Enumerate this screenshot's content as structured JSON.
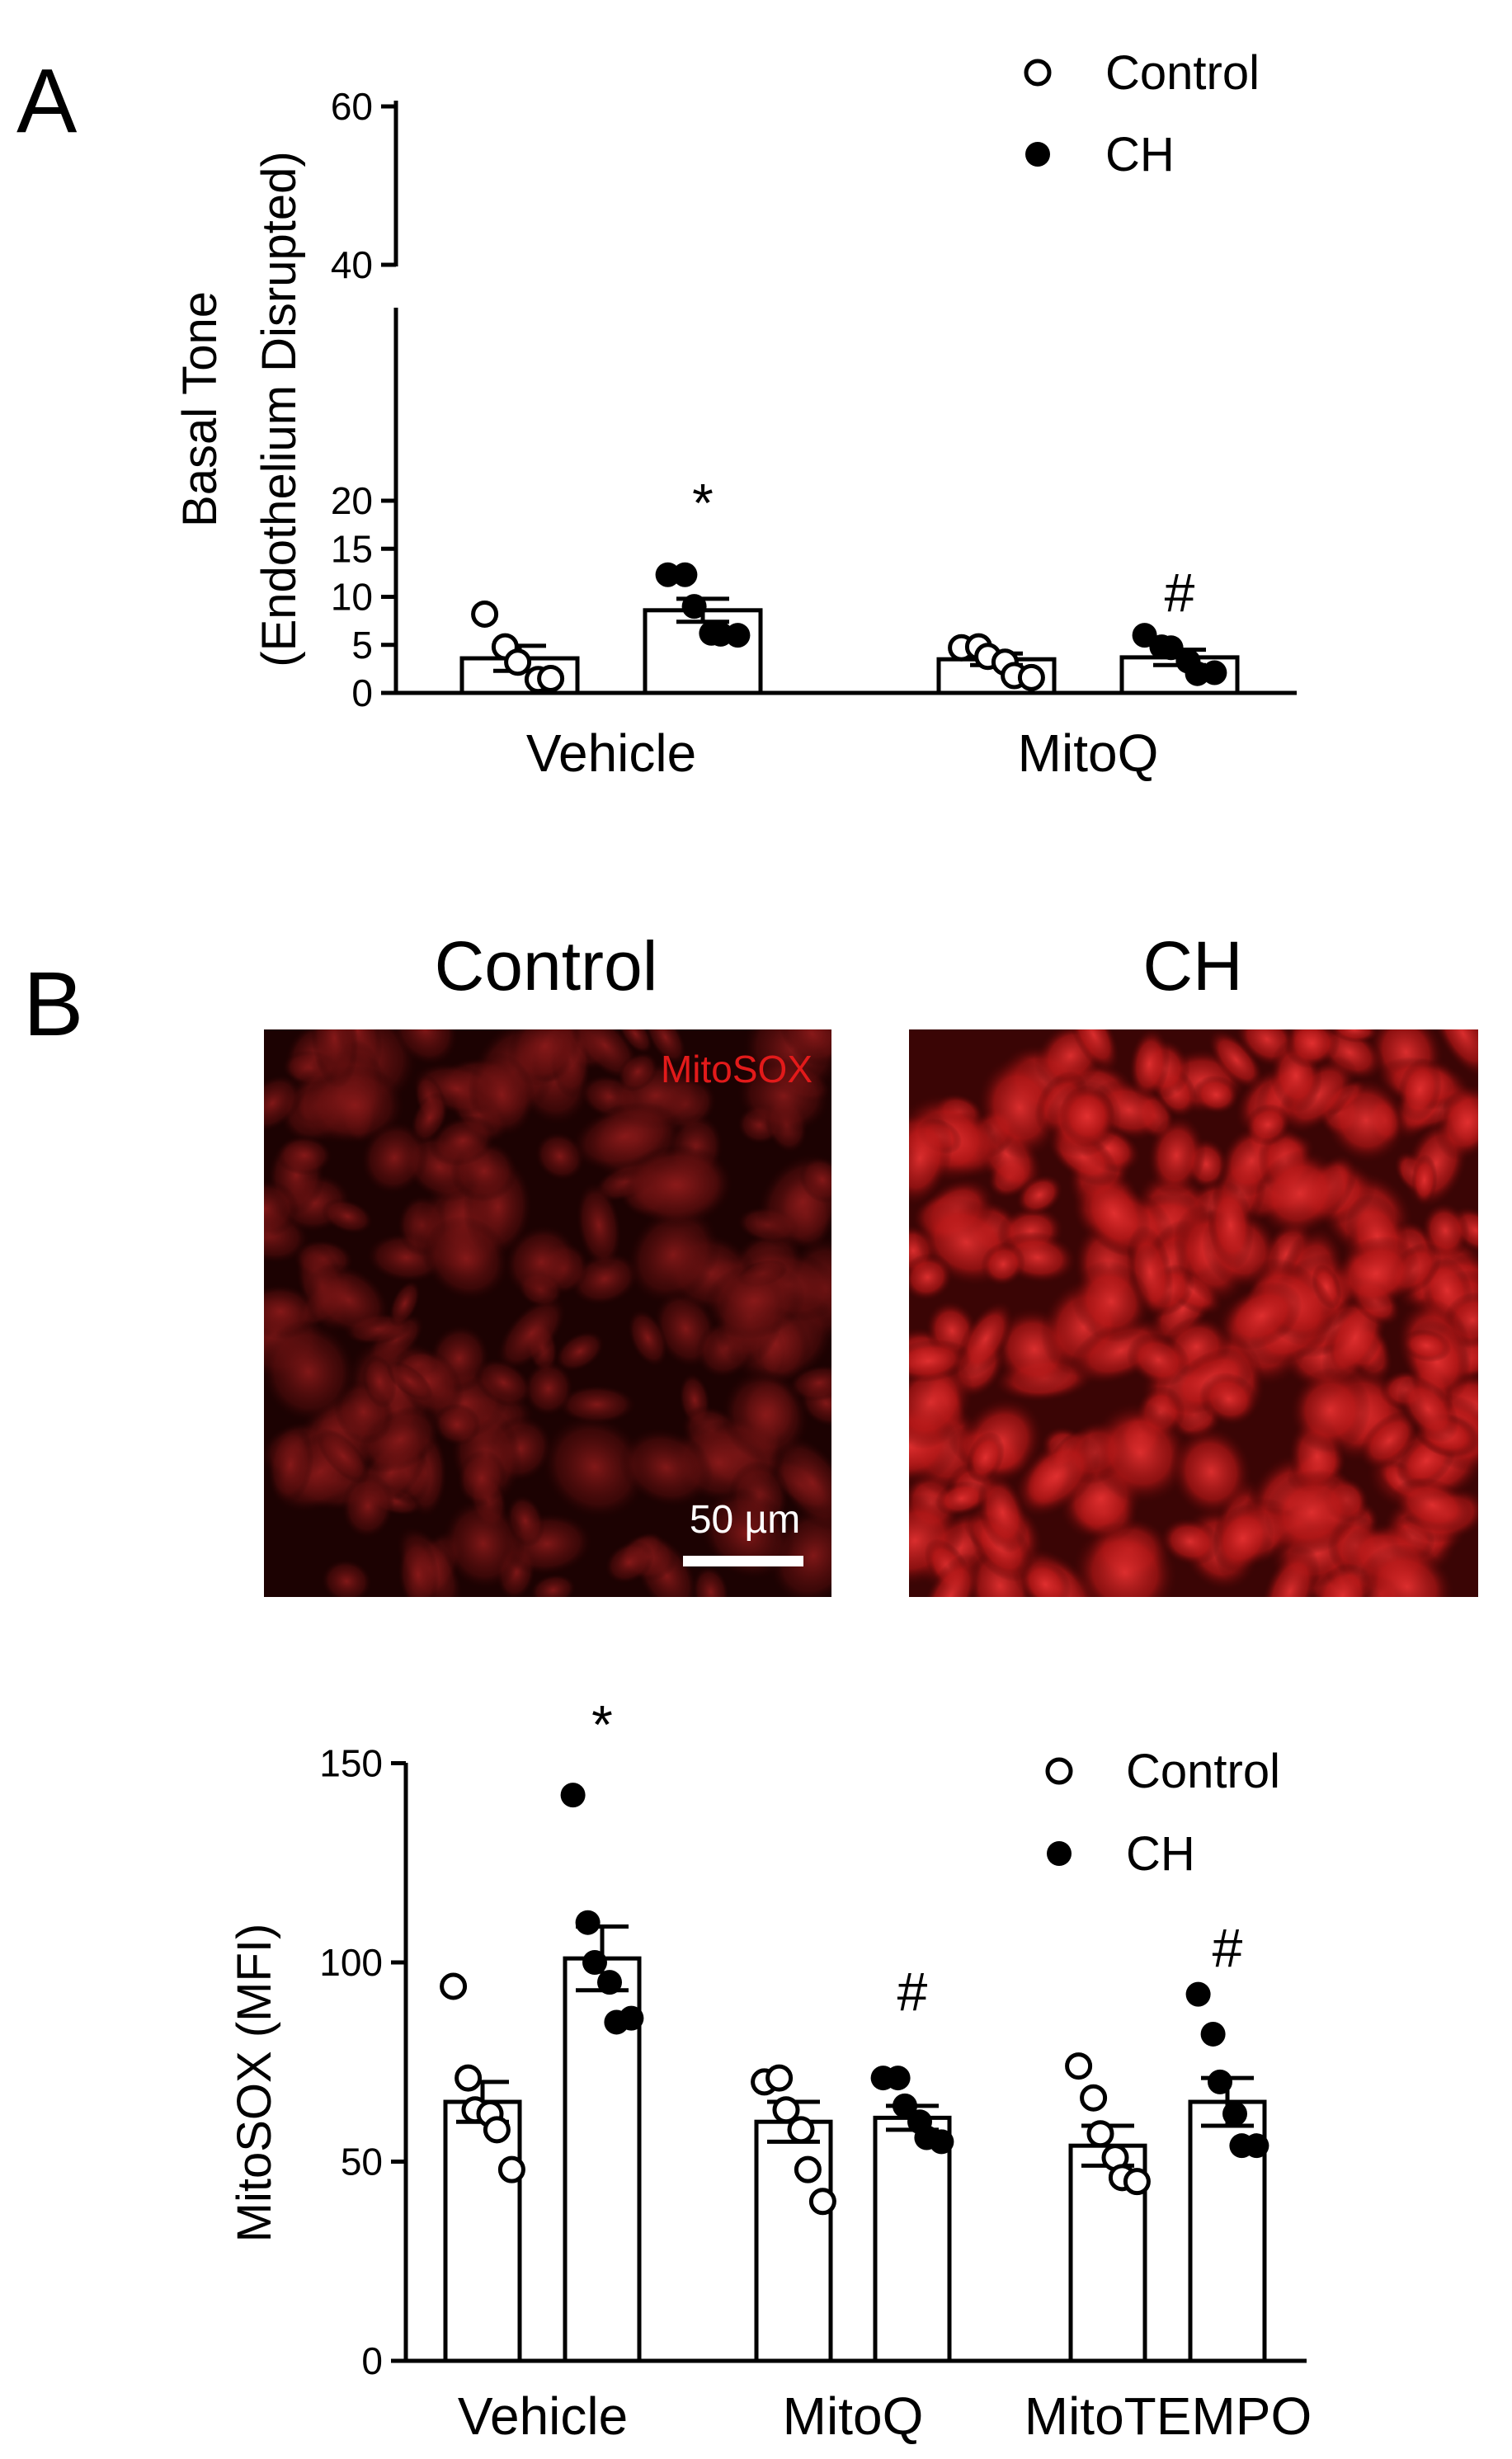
{
  "panels": {
    "a": {
      "letter": "A"
    },
    "b": {
      "letter": "B"
    }
  },
  "images": {
    "control_title": "Control",
    "ch_title": "CH",
    "stain_label": "MitoSOX",
    "scale_bar_label": "50 µm"
  },
  "chart_data": [
    {
      "id": "chart-a",
      "type": "bar",
      "ylabel_line1": "Basal Tone",
      "ylabel_line2": "(Endothelium Disrupted)",
      "categories": [
        "Vehicle",
        "MitoQ"
      ],
      "y_axis_break": true,
      "ylim_lower": [
        0,
        20
      ],
      "ylim_upper": [
        40,
        60
      ],
      "yticks": [
        0,
        5,
        10,
        15,
        20,
        40,
        60
      ],
      "legend": {
        "position": "top-right",
        "entries": [
          "Control",
          "CH"
        ]
      },
      "series": [
        {
          "name": "Control",
          "marker": "open-circle",
          "means": [
            3.6,
            3.5
          ],
          "sem": [
            1.3,
            0.6
          ],
          "points": [
            [
              8.2,
              4.8,
              3.2,
              1.4,
              1.5
            ],
            [
              4.7,
              4.8,
              3.8,
              3.2,
              1.8,
              1.6
            ]
          ]
        },
        {
          "name": "CH",
          "marker": "filled-circle",
          "means": [
            8.6,
            3.7
          ],
          "sem": [
            1.2,
            0.8
          ],
          "points": [
            [
              12.3,
              12.3,
              9.0,
              6.2,
              6.1,
              6.0
            ],
            [
              6.0,
              4.8,
              4.7,
              3.3,
              2.0,
              2.1
            ]
          ]
        }
      ],
      "significance": [
        {
          "category": 0,
          "series": 1,
          "symbol": "*",
          "y": 17.8
        },
        {
          "category": 1,
          "series": 1,
          "symbol": "#",
          "y": 8.5
        }
      ]
    },
    {
      "id": "chart-b",
      "type": "bar",
      "ylabel": "MitoSOX (MFI)",
      "categories": [
        "Vehicle",
        "MitoQ",
        "MitoTEMPO"
      ],
      "ylim": [
        0,
        150
      ],
      "yticks": [
        0,
        50,
        100,
        150
      ],
      "legend": {
        "position": "top-right",
        "entries": [
          "Control",
          "CH"
        ]
      },
      "series": [
        {
          "name": "Control",
          "marker": "open-circle",
          "means": [
            65,
            60,
            54
          ],
          "sem": [
            5,
            5,
            5
          ],
          "points": [
            [
              94,
              71,
              63,
              62,
              58,
              48
            ],
            [
              70,
              71,
              63,
              58,
              48,
              40
            ],
            [
              74,
              66,
              57,
              51,
              46,
              45
            ]
          ]
        },
        {
          "name": "CH",
          "marker": "filled-circle",
          "means": [
            101,
            61,
            65
          ],
          "sem": [
            8,
            3,
            6
          ],
          "points": [
            [
              142,
              110,
              100,
              95,
              85,
              86
            ],
            [
              71,
              71,
              64,
              60,
              56,
              55
            ],
            [
              92,
              82,
              70,
              62,
              54,
              54
            ]
          ]
        }
      ],
      "significance": [
        {
          "category": 0,
          "series": 1,
          "symbol": "*",
          "y": 155
        },
        {
          "category": 1,
          "series": 1,
          "symbol": "#",
          "y": 88
        },
        {
          "category": 2,
          "series": 1,
          "symbol": "#",
          "y": 99
        }
      ]
    }
  ]
}
